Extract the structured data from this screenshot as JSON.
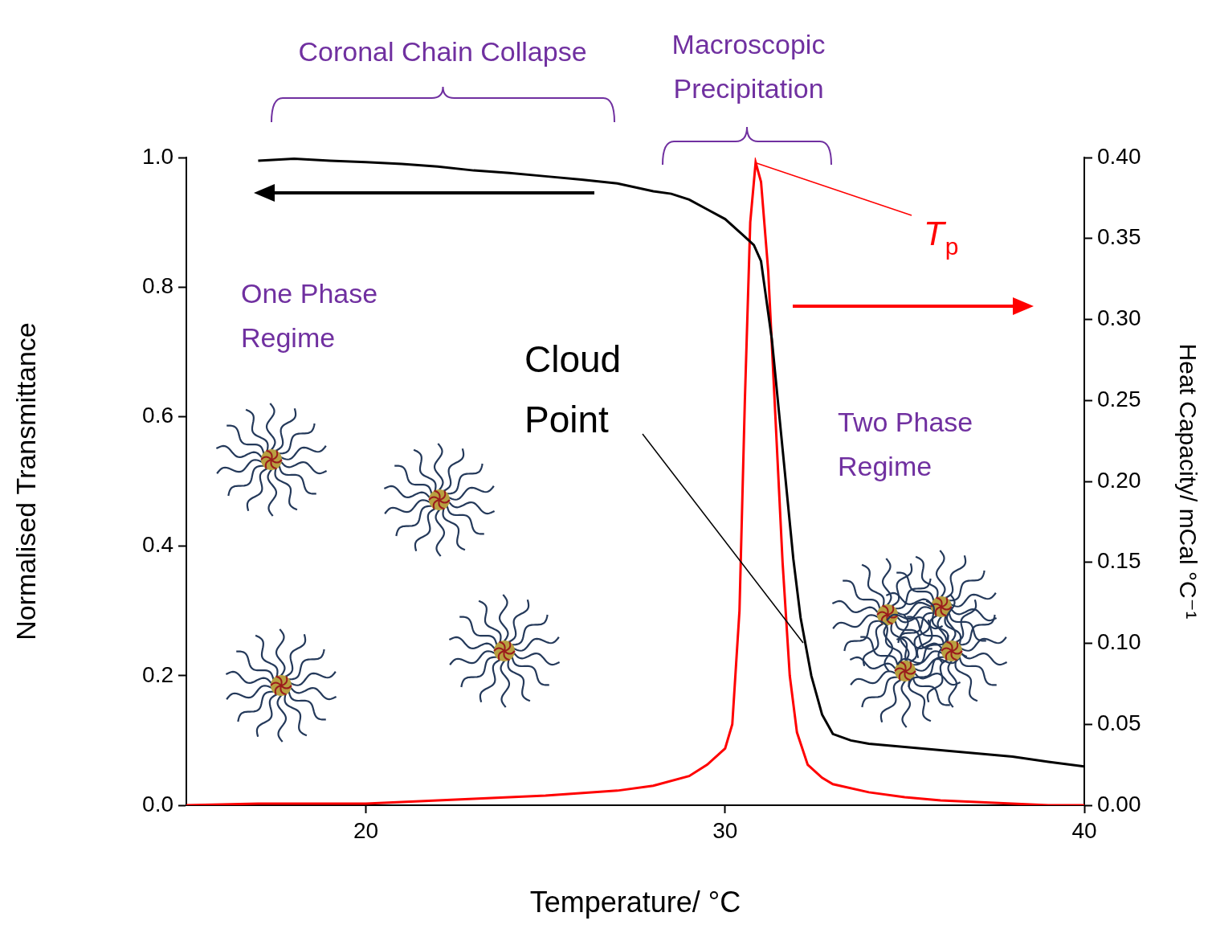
{
  "chart_data": {
    "type": "line",
    "x_label": "Temperature/ °C",
    "y_label": "Normalised Transmittance",
    "y2_label": "Heat Capacity/ mCal °C⁻¹",
    "xlim": [
      15,
      40
    ],
    "xticks": [
      20,
      30,
      40
    ],
    "ylim": [
      0,
      1
    ],
    "yticks": [
      {
        "value": 0,
        "label": "0.0"
      },
      {
        "value": 0.2,
        "label": "0.2"
      },
      {
        "value": 0.4,
        "label": "0.4"
      },
      {
        "value": 0.6,
        "label": "0.6"
      },
      {
        "value": 0.8,
        "label": "0.8"
      },
      {
        "value": 1,
        "label": "1.0"
      }
    ],
    "y2lim": [
      0,
      0.4
    ],
    "y2ticks": [
      {
        "value": 0,
        "label": "0.00"
      },
      {
        "value": 0.05,
        "label": "0.05"
      },
      {
        "value": 0.1,
        "label": "0.10"
      },
      {
        "value": 0.15,
        "label": "0.15"
      },
      {
        "value": 0.2,
        "label": "0.20"
      },
      {
        "value": 0.25,
        "label": "0.25"
      },
      {
        "value": 0.3,
        "label": "0.30"
      },
      {
        "value": 0.35,
        "label": "0.35"
      },
      {
        "value": 0.4,
        "label": "0.40"
      }
    ],
    "grid": false,
    "series": [
      {
        "color": "#000000",
        "x": [
          17,
          18,
          19,
          20,
          21,
          22,
          23,
          24,
          25,
          26,
          27,
          28,
          28.5,
          29,
          29.5,
          30,
          30.5,
          30.8,
          31,
          31.3,
          31.6,
          31.9,
          32.1,
          32.4,
          32.7,
          33,
          33.5,
          34,
          35,
          36,
          37,
          38,
          39,
          40
        ],
        "values": [
          0.995,
          0.998,
          0.995,
          0.993,
          0.99,
          0.986,
          0.98,
          0.976,
          0.971,
          0.966,
          0.96,
          0.948,
          0.944,
          0.935,
          0.92,
          0.905,
          0.88,
          0.865,
          0.84,
          0.72,
          0.55,
          0.38,
          0.29,
          0.2,
          0.14,
          0.11,
          0.1,
          0.095,
          0.09,
          0.085,
          0.08,
          0.075,
          0.067,
          0.06
        ]
      },
      {
        "color": "#ff0000",
        "axis": "y2",
        "x": [
          15,
          17,
          19,
          20,
          22,
          24,
          25,
          27,
          28,
          29,
          29.5,
          30,
          30.2,
          30.4,
          30.55,
          30.7,
          30.85,
          31,
          31.2,
          31.4,
          31.6,
          31.8,
          32,
          32.3,
          32.7,
          33,
          34,
          35,
          36,
          37,
          38,
          39,
          40
        ],
        "values": [
          0,
          0.001,
          0.001,
          0.001,
          0.003,
          0.005,
          0.006,
          0.009,
          0.012,
          0.018,
          0.025,
          0.035,
          0.05,
          0.12,
          0.25,
          0.36,
          0.397,
          0.385,
          0.33,
          0.24,
          0.15,
          0.08,
          0.045,
          0.025,
          0.017,
          0.013,
          0.008,
          0.005,
          0.003,
          0.002,
          0.001,
          0,
          0
        ]
      }
    ],
    "annotations": [
      "Coronal Chain Collapse",
      "Macroscopic Precipitation",
      "Cloud Point",
      "One Phase Regime",
      "Two Phase Regime",
      "Tp"
    ]
  }
}
